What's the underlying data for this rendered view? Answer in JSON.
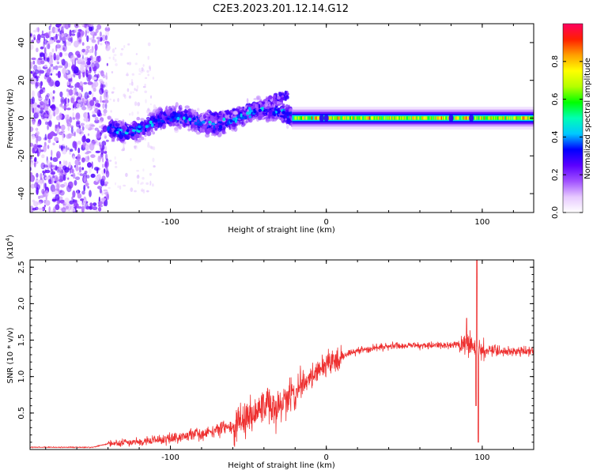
{
  "figure": {
    "title": "C2E3.2023.201.12.14.G12"
  },
  "chart_data": [
    {
      "type": "heatmap",
      "xlabel": "Height of straight line (km)",
      "ylabel": "Frequency (Hz)",
      "xlim": [
        -190,
        133
      ],
      "ylim": [
        -50,
        50
      ],
      "x_ticks": [
        -100,
        0,
        100
      ],
      "y_ticks": [
        -40,
        -20,
        0,
        20,
        40
      ],
      "colorbar": {
        "label": "Normalized spectral amplitude",
        "range": [
          0,
          1
        ],
        "ticks": [
          0.0,
          0.2,
          0.4,
          0.6,
          0.8
        ],
        "colors": [
          "#ffffff",
          "#e6c8ff",
          "#a050ff",
          "#5a00ff",
          "#0000ff",
          "#00c8ff",
          "#00ffb4",
          "#00ff00",
          "#b4ff00",
          "#ffff00",
          "#ffa000",
          "#ff2000",
          "#ff0060"
        ]
      },
      "regions": [
        {
          "name": "noisy",
          "x_range": [
            -190,
            -140
          ],
          "freq_range": [
            -50,
            50
          ]
        },
        {
          "name": "scattered-band",
          "x_range": [
            -140,
            -22
          ],
          "center_freq_start": -5,
          "center_freq_end": 3
        },
        {
          "name": "upper-branch",
          "x_range": [
            -80,
            -25
          ],
          "center_freq_start": 0,
          "center_freq_end": 13
        },
        {
          "name": "carrier",
          "x_range": [
            -22,
            133
          ],
          "center_freq": 0,
          "peak_amplitude": 0.85
        }
      ]
    },
    {
      "type": "line",
      "xlabel": "Height of straight line (km)",
      "ylabel": "SNR (10 * v/v)",
      "y_multiplier": "(x10",
      "y_multiplier_exp": "4",
      "y_multiplier_close": ")",
      "xlim": [
        -190,
        133
      ],
      "ylim": [
        0,
        2.6
      ],
      "x_ticks": [
        -100,
        0,
        100
      ],
      "y_ticks": [
        0.5,
        1.0,
        1.5,
        2.0,
        2.5
      ],
      "color": "#ee3030",
      "trend": {
        "x": [
          -190,
          -150,
          -140,
          -110,
          -80,
          -60,
          -45,
          -30,
          -20,
          -10,
          0,
          10,
          20,
          40,
          60,
          80,
          90,
          97,
          100,
          110,
          120,
          133
        ],
        "y": [
          0.03,
          0.03,
          0.08,
          0.12,
          0.22,
          0.32,
          0.5,
          0.62,
          0.8,
          1.0,
          1.15,
          1.28,
          1.35,
          1.42,
          1.43,
          1.43,
          1.45,
          1.4,
          1.35,
          1.35,
          1.35,
          1.35
        ]
      },
      "spikes": [
        {
          "x": 96.5,
          "y": 2.6
        },
        {
          "x": 97.5,
          "y": 0.1
        },
        {
          "x": 96,
          "y": 0.6
        },
        {
          "x": 90,
          "y": 1.8
        }
      ]
    }
  ]
}
